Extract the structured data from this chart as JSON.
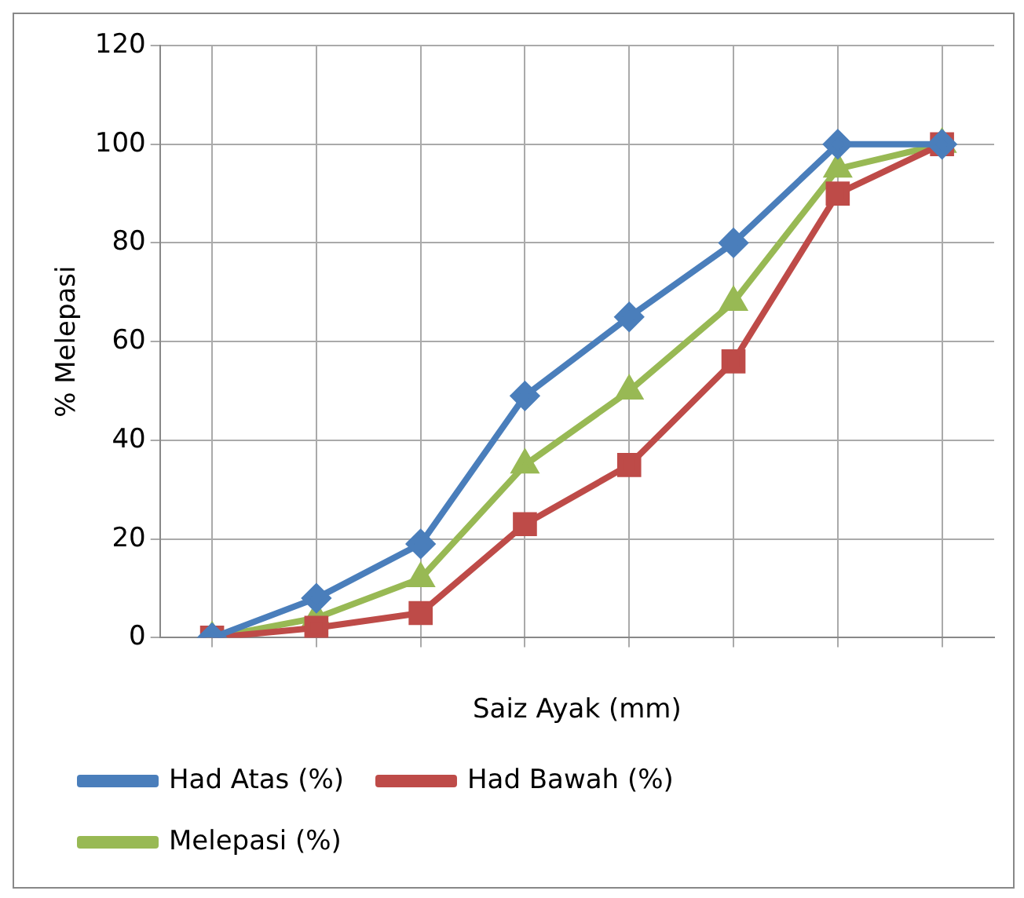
{
  "chart_data": {
    "type": "line",
    "xlabel": "Saiz Ayak (mm)",
    "ylabel": "% Melepasi",
    "categories": [
      null,
      null,
      null,
      null,
      null,
      null,
      null,
      null
    ],
    "series": [
      {
        "name": "Had Atas (%)",
        "color": "#4a7ebb",
        "marker": "diamond",
        "values": [
          0,
          8,
          19,
          49,
          65,
          80,
          100,
          100
        ]
      },
      {
        "name": "Had Bawah (%)",
        "color": "#be4b48",
        "marker": "square",
        "values": [
          0,
          2,
          5,
          23,
          35,
          56,
          90,
          100
        ]
      },
      {
        "name": "Melepasi (%)",
        "color": "#98b954",
        "marker": "triangle",
        "values": [
          0,
          4,
          12,
          35,
          50,
          68,
          95,
          100
        ]
      }
    ],
    "ylim": [
      0,
      120
    ],
    "yticks": [
      0,
      20,
      40,
      60,
      80,
      100,
      120
    ],
    "grid": true,
    "legend": "bottom",
    "line_style": "solid"
  }
}
